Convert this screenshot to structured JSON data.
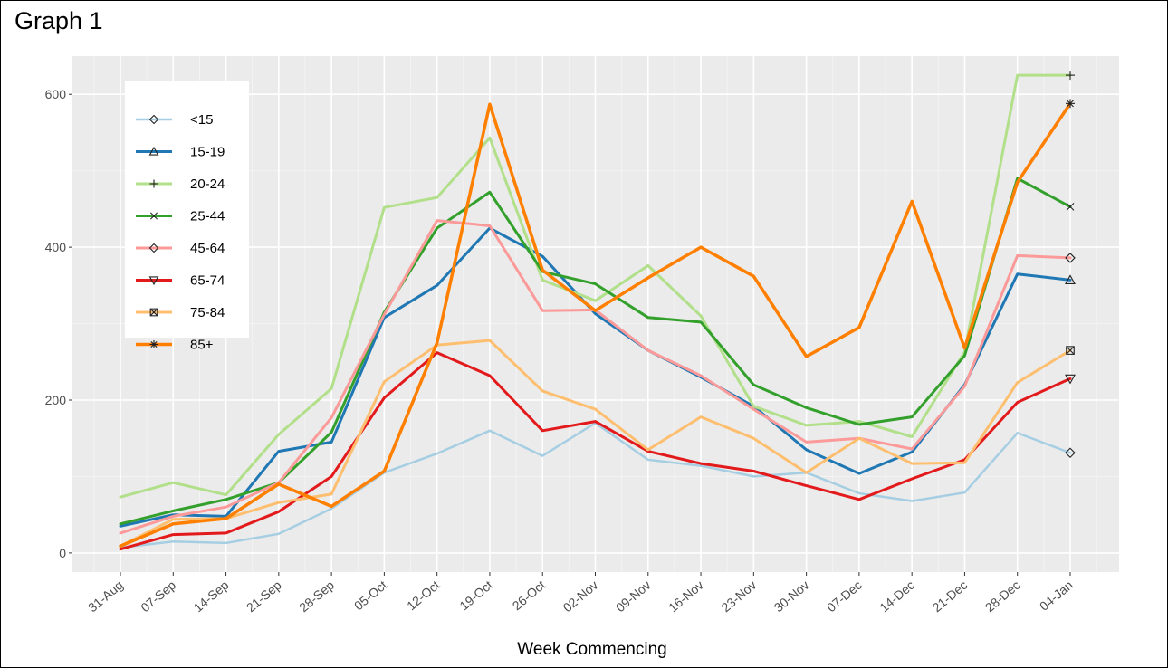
{
  "page": {
    "title": "Graph 1"
  },
  "chart_data": {
    "type": "line",
    "title": "",
    "xlabel": "Week Commencing",
    "ylabel": "",
    "categories": [
      "31-Aug",
      "07-Sep",
      "14-Sep",
      "21-Sep",
      "28-Sep",
      "05-Oct",
      "12-Oct",
      "19-Oct",
      "26-Oct",
      "02-Nov",
      "09-Nov",
      "16-Nov",
      "23-Nov",
      "30-Nov",
      "07-Dec",
      "14-Dec",
      "21-Dec",
      "28-Dec",
      "04-Jan"
    ],
    "ylim": [
      -25,
      650
    ],
    "yticks": [
      0,
      200,
      400,
      600
    ],
    "grid": true,
    "legend_position": "top-left",
    "series": [
      {
        "name": "<15",
        "color": "#a6cee3",
        "marker": "diamond",
        "width": 2.5,
        "values": [
          7,
          15,
          13,
          25,
          58,
          105,
          130,
          160,
          127,
          170,
          122,
          114,
          100,
          105,
          78,
          68,
          79,
          157,
          131
        ]
      },
      {
        "name": "15-19",
        "color": "#1f78b4",
        "marker": "triangle-up",
        "width": 3,
        "values": [
          35,
          50,
          48,
          133,
          145,
          308,
          350,
          425,
          388,
          313,
          265,
          230,
          192,
          135,
          104,
          132,
          220,
          365,
          357
        ]
      },
      {
        "name": "20-24",
        "color": "#b2df8a",
        "marker": "plus",
        "width": 3,
        "values": [
          73,
          92,
          76,
          155,
          215,
          452,
          465,
          543,
          357,
          330,
          376,
          310,
          192,
          167,
          172,
          152,
          263,
          625,
          625
        ]
      },
      {
        "name": "25-44",
        "color": "#33a02c",
        "marker": "x",
        "width": 3,
        "values": [
          38,
          55,
          70,
          92,
          158,
          315,
          425,
          472,
          368,
          352,
          308,
          302,
          220,
          190,
          168,
          178,
          258,
          490,
          453
        ]
      },
      {
        "name": "45-64",
        "color": "#fb9a99",
        "marker": "diamond",
        "width": 3,
        "values": [
          26,
          48,
          60,
          92,
          177,
          312,
          435,
          428,
          317,
          318,
          265,
          232,
          188,
          145,
          150,
          136,
          218,
          389,
          386
        ]
      },
      {
        "name": "65-74",
        "color": "#e31a1c",
        "marker": "triangle-down",
        "width": 3,
        "values": [
          5,
          24,
          26,
          54,
          100,
          203,
          262,
          232,
          160,
          172,
          133,
          117,
          107,
          88,
          70,
          97,
          122,
          197,
          228
        ]
      },
      {
        "name": "75-84",
        "color": "#fdbf6f",
        "marker": "square-x",
        "width": 3,
        "values": [
          9,
          44,
          45,
          66,
          77,
          224,
          272,
          278,
          212,
          188,
          135,
          178,
          150,
          105,
          150,
          117,
          118,
          223,
          265
        ]
      },
      {
        "name": "85+",
        "color": "#ff7f00",
        "marker": "asterisk",
        "width": 3.5,
        "values": [
          9,
          38,
          45,
          90,
          61,
          107,
          275,
          587,
          370,
          317,
          360,
          400,
          362,
          257,
          295,
          460,
          268,
          485,
          588
        ]
      }
    ]
  }
}
